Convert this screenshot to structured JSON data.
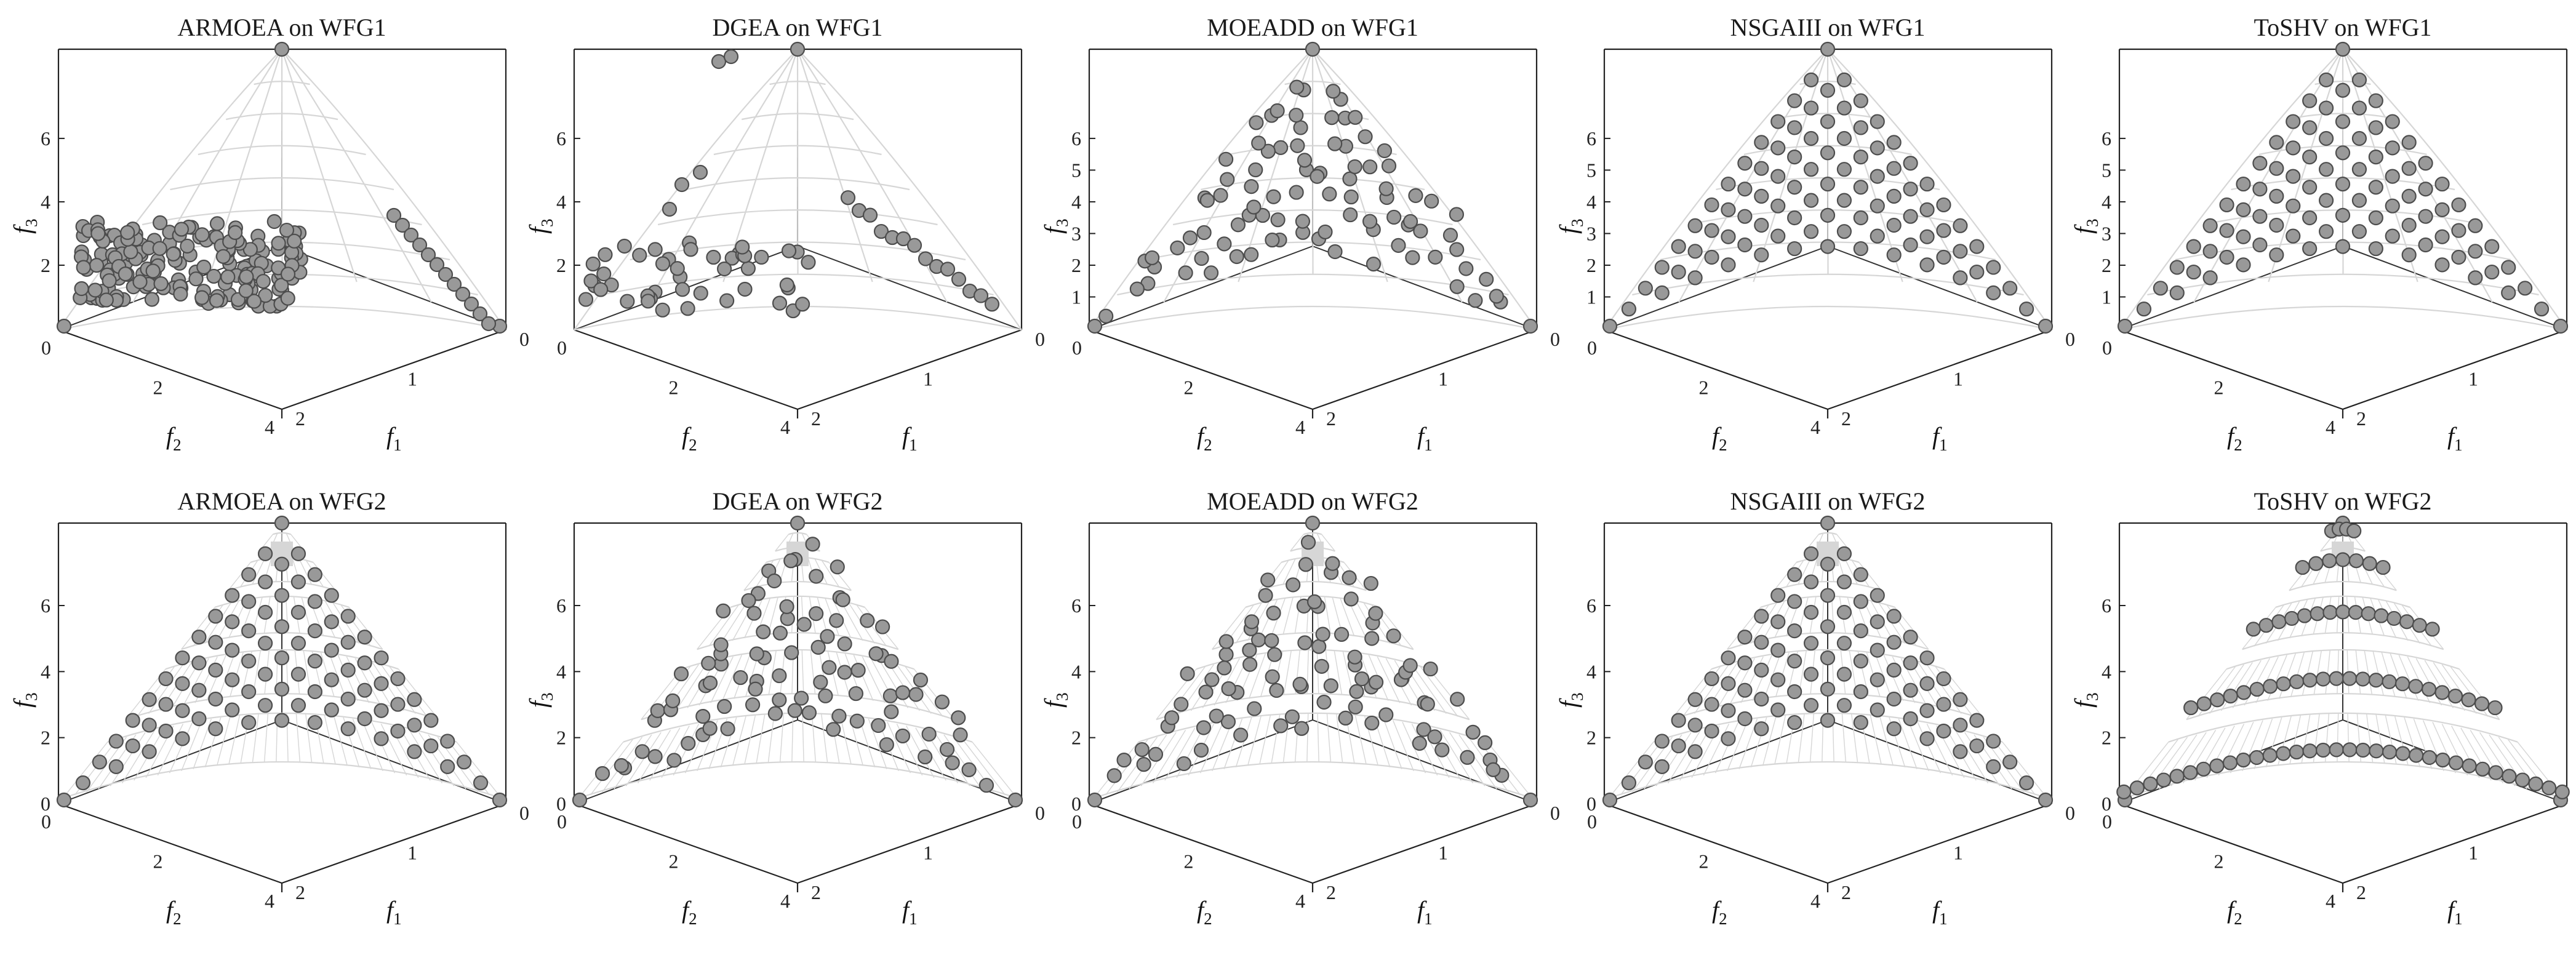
{
  "chart_data": [
    {
      "type": "scatter",
      "title": "ARMOEA on WFG1",
      "xlabel": "f1",
      "ylabel": "f2",
      "zlabel": "f3",
      "f1_ticks": [
        "0",
        "1",
        "2"
      ],
      "f2_ticks": [
        "0",
        "2",
        "4"
      ],
      "f3_ticks": [
        "2",
        "4",
        "6"
      ],
      "f1_range": [
        0,
        2
      ],
      "f2_range": [
        0,
        4
      ],
      "f3_range": [
        0,
        6
      ],
      "front": "WFG1",
      "spread": "clustered",
      "n_points": 220,
      "grid": true
    },
    {
      "type": "scatter",
      "title": "DGEA on WFG1",
      "xlabel": "f1",
      "ylabel": "f2",
      "zlabel": "f3",
      "f1_ticks": [
        "0",
        "1",
        "2"
      ],
      "f2_ticks": [
        "0",
        "2",
        "4"
      ],
      "f3_ticks": [
        "2",
        "4",
        "6"
      ],
      "f1_range": [
        0,
        2
      ],
      "f2_range": [
        0,
        4
      ],
      "f3_range": [
        0,
        6
      ],
      "front": "WFG1",
      "spread": "sparse",
      "n_points": 80,
      "grid": true
    },
    {
      "type": "scatter",
      "title": "MOEADD on WFG1",
      "xlabel": "f1",
      "ylabel": "f2",
      "zlabel": "f3",
      "f1_ticks": [
        "0",
        "1",
        "2"
      ],
      "f2_ticks": [
        "0",
        "2",
        "4"
      ],
      "f3_ticks": [
        "1",
        "2",
        "3",
        "4",
        "5",
        "6"
      ],
      "f1_range": [
        0,
        2
      ],
      "f2_range": [
        0,
        4
      ],
      "f3_range": [
        0,
        6
      ],
      "front": "WFG1",
      "spread": "moderate",
      "n_points": 100,
      "grid": true
    },
    {
      "type": "scatter",
      "title": "NSGAIII on WFG1",
      "xlabel": "f1",
      "ylabel": "f2",
      "zlabel": "f3",
      "f1_ticks": [
        "0",
        "1",
        "2"
      ],
      "f2_ticks": [
        "0",
        "2",
        "4"
      ],
      "f3_ticks": [
        "1",
        "2",
        "3",
        "4",
        "5",
        "6"
      ],
      "f1_range": [
        0,
        2
      ],
      "f2_range": [
        0,
        4
      ],
      "f3_range": [
        0,
        6
      ],
      "front": "WFG1",
      "spread": "uniform",
      "n_points": 91,
      "grid": true
    },
    {
      "type": "scatter",
      "title": "ToSHV on WFG1",
      "xlabel": "f1",
      "ylabel": "f2",
      "zlabel": "f3",
      "f1_ticks": [
        "0",
        "1",
        "2"
      ],
      "f2_ticks": [
        "0",
        "2",
        "4"
      ],
      "f3_ticks": [
        "1",
        "2",
        "3",
        "4",
        "5",
        "6"
      ],
      "f1_range": [
        0,
        2
      ],
      "f2_range": [
        0,
        4
      ],
      "f3_range": [
        0,
        6
      ],
      "front": "WFG1",
      "spread": "uniform",
      "n_points": 105,
      "grid": true
    },
    {
      "type": "scatter",
      "title": "ARMOEA on WFG2",
      "xlabel": "f1",
      "ylabel": "f2",
      "zlabel": "f3",
      "f1_ticks": [
        "0",
        "1",
        "2"
      ],
      "f2_ticks": [
        "0",
        "2",
        "4"
      ],
      "f3_ticks": [
        "0",
        "2",
        "4",
        "6"
      ],
      "f1_range": [
        0,
        2
      ],
      "f2_range": [
        0,
        4
      ],
      "f3_range": [
        0,
        6
      ],
      "front": "WFG2",
      "spread": "uniform",
      "n_points": 91,
      "grid": true
    },
    {
      "type": "scatter",
      "title": "DGEA on WFG2",
      "xlabel": "f1",
      "ylabel": "f2",
      "zlabel": "f3",
      "f1_ticks": [
        "0",
        "1",
        "2"
      ],
      "f2_ticks": [
        "0",
        "2",
        "4"
      ],
      "f3_ticks": [
        "0",
        "2",
        "4",
        "6"
      ],
      "f1_range": [
        0,
        2
      ],
      "f2_range": [
        0,
        4
      ],
      "f3_range": [
        0,
        6
      ],
      "front": "WFG2",
      "spread": "moderate",
      "n_points": 95,
      "grid": true
    },
    {
      "type": "scatter",
      "title": "MOEADD on WFG2",
      "xlabel": "f1",
      "ylabel": "f2",
      "zlabel": "f3",
      "f1_ticks": [
        "0",
        "1",
        "2"
      ],
      "f2_ticks": [
        "0",
        "2",
        "4"
      ],
      "f3_ticks": [
        "0",
        "2",
        "4",
        "6"
      ],
      "f1_range": [
        0,
        2
      ],
      "f2_range": [
        0,
        4
      ],
      "f3_range": [
        0,
        6
      ],
      "front": "WFG2",
      "spread": "moderate",
      "n_points": 100,
      "grid": true
    },
    {
      "type": "scatter",
      "title": "NSGAIII on WFG2",
      "xlabel": "f1",
      "ylabel": "f2",
      "zlabel": "f3",
      "f1_ticks": [
        "0",
        "1",
        "2"
      ],
      "f2_ticks": [
        "0",
        "2",
        "4"
      ],
      "f3_ticks": [
        "0",
        "2",
        "4",
        "6"
      ],
      "f1_range": [
        0,
        2
      ],
      "f2_range": [
        0,
        4
      ],
      "f3_range": [
        0,
        6
      ],
      "front": "WFG2",
      "spread": "uniform",
      "n_points": 91,
      "grid": true
    },
    {
      "type": "scatter",
      "title": "ToSHV on WFG2",
      "xlabel": "f1",
      "ylabel": "f2",
      "zlabel": "f3",
      "f1_ticks": [
        "0",
        "1",
        "2"
      ],
      "f2_ticks": [
        "0",
        "2",
        "4"
      ],
      "f3_ticks": [
        "0",
        "2",
        "4",
        "6"
      ],
      "f1_range": [
        0,
        2
      ],
      "f2_range": [
        0,
        4
      ],
      "f3_range": [
        0,
        6
      ],
      "front": "WFG2",
      "spread": "rings",
      "n_points": 110,
      "grid": true
    }
  ],
  "colors": {
    "marker_fill": "#999999",
    "marker_stroke": "#4d4d4d",
    "surface": "#d6d6d6",
    "box": "#222222"
  }
}
